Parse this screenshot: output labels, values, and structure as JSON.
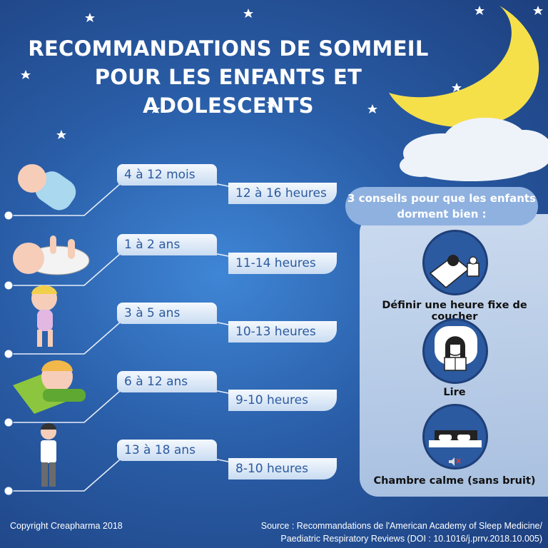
{
  "title": {
    "line1": "RECOMMANDATIONS DE SOMMEIL",
    "line2": "POUR LES ENFANTS ET ADOLESCENTS"
  },
  "age_groups": [
    {
      "age": "4 à 12 mois",
      "hours": "12 à 16 heures",
      "icon": "newborn-swaddled-icon"
    },
    {
      "age": "1 à 2 ans",
      "hours": "11-14 heures",
      "icon": "baby-lying-icon"
    },
    {
      "age": "3 à 5 ans",
      "hours": "10-13 heures",
      "icon": "toddler-girl-icon"
    },
    {
      "age": "6 à 12 ans",
      "hours": "9-10 heures",
      "icon": "sleeping-child-icon"
    },
    {
      "age": "13 à 18 ans",
      "hours": "8-10 heures",
      "icon": "teenager-icon"
    }
  ],
  "tips": {
    "heading_line1": "3 conseils pour que les enfants",
    "heading_line2": "dorment bien :",
    "items": [
      {
        "label": "Définir une heure fixe de coucher",
        "icon": "bed-clock-icon"
      },
      {
        "label": "Lire",
        "icon": "reading-girl-icon"
      },
      {
        "label": "Chambre calme (sans bruit)",
        "icon": "quiet-bed-icon"
      }
    ]
  },
  "footer": {
    "copyright": "Copyright Creapharma 2018",
    "source_line1": "Source : Recommandations de l'American Academy of Sleep Medicine/",
    "source_line2": "Paediatric Respiratory Reviews (DOI : 10.1016/j.prrv.2018.10.005)"
  },
  "colors": {
    "background": "#2a5ea8",
    "moon": "#f5e04a",
    "tag_text": "#2b5aa0",
    "panel": "#c6d7ee"
  }
}
